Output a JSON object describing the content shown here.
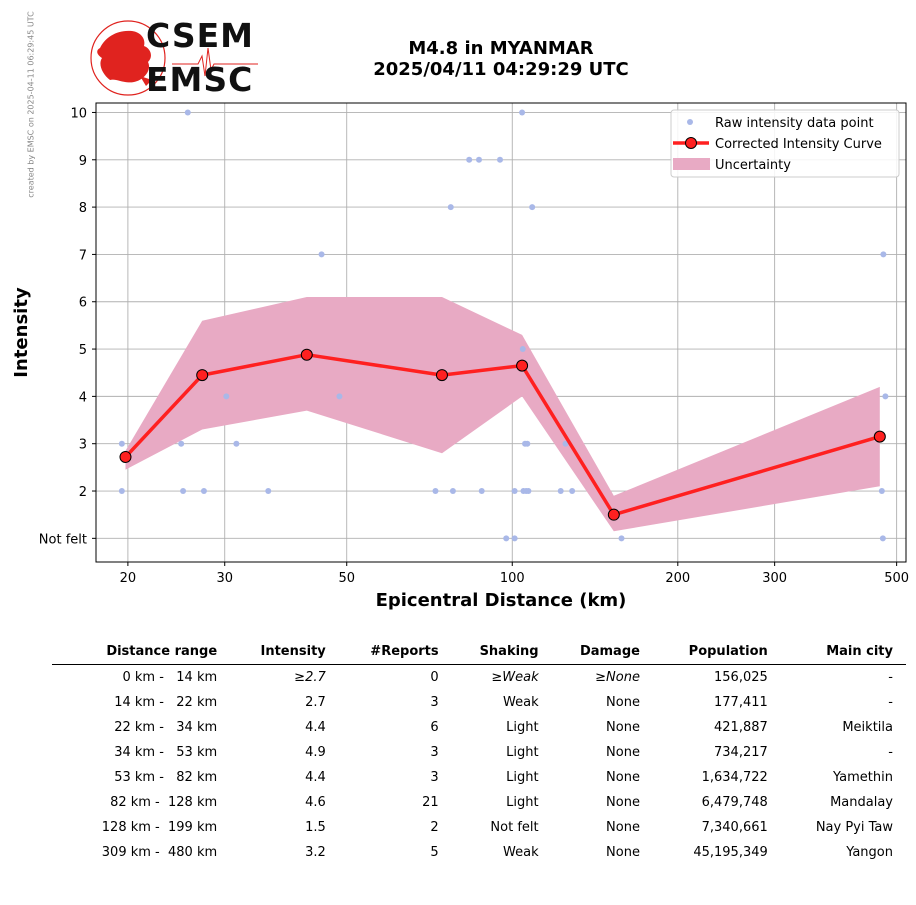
{
  "watermark": "created by EMSC on 2025-04-11 06:29:45 UTC",
  "logo": {
    "top": "CSEM",
    "bottom": "EMSC",
    "color": "#e0231f"
  },
  "title": {
    "line1": "M4.8 in MYANMAR",
    "line2": "2025/04/11 04:29:29 UTC"
  },
  "chart_data": {
    "type": "line",
    "xlabel": "Epicentral Distance (km)",
    "ylabel": "Intensity",
    "xscale": "log",
    "xlim": [
      17.5,
      520
    ],
    "ylim": [
      0.5,
      10.2
    ],
    "xticks": [
      20,
      30,
      50,
      100,
      200,
      300,
      500
    ],
    "yticks": [
      {
        "v": 1,
        "label": "Not felt"
      },
      {
        "v": 2,
        "label": "2"
      },
      {
        "v": 3,
        "label": "3"
      },
      {
        "v": 4,
        "label": "4"
      },
      {
        "v": 5,
        "label": "5"
      },
      {
        "v": 6,
        "label": "6"
      },
      {
        "v": 7,
        "label": "7"
      },
      {
        "v": 8,
        "label": "8"
      },
      {
        "v": 9,
        "label": "9"
      },
      {
        "v": 10,
        "label": "10"
      }
    ],
    "grid": true,
    "legend_position": "top-right",
    "legend": [
      "Raw intensity data point",
      "Corrected Intensity Curve",
      "Uncertainty"
    ],
    "colors": {
      "raw": "#a9b8e8",
      "curve": "#ff2020",
      "marker_edge": "#000000",
      "uncertainty": "#e8aac4",
      "grid": "#b0b0b0"
    },
    "curve": {
      "x": [
        19.8,
        27.3,
        42.3,
        74.5,
        104.2,
        153,
        466
      ],
      "y": [
        2.72,
        4.45,
        4.88,
        4.45,
        4.65,
        1.5,
        3.15
      ]
    },
    "uncertainty": {
      "x": [
        19.8,
        27.3,
        42.3,
        74.5,
        104.2,
        153,
        466
      ],
      "upper": [
        2.85,
        5.6,
        6.1,
        6.1,
        5.3,
        1.9,
        4.2
      ],
      "lower": [
        2.45,
        3.3,
        3.7,
        2.8,
        4.0,
        1.15,
        2.1
      ]
    },
    "raw_points": {
      "x": [
        25.7,
        104.2,
        83.5,
        87.0,
        95.0,
        77.3,
        108.7,
        45.0,
        473,
        104.5,
        30.2,
        48.5,
        477,
        19.5,
        25.0,
        31.5,
        105.5,
        106.5,
        125.0,
        19.5,
        25.2,
        27.5,
        36.0,
        72.5,
        78.0,
        88.0,
        101.0,
        104.8,
        106.0,
        107.0,
        122.5,
        128.5,
        470,
        97.5,
        101.0,
        158.0,
        472
      ],
      "y": [
        10,
        10,
        9,
        9,
        9,
        8,
        8,
        7,
        7,
        5,
        4,
        4,
        4,
        3,
        3,
        3,
        3,
        3,
        3,
        2,
        2,
        2,
        2,
        2,
        2,
        2,
        2,
        2,
        2,
        2,
        2,
        2,
        2,
        1,
        1,
        1,
        1
      ]
    }
  },
  "table": {
    "headers": [
      "Distance range",
      "Intensity",
      "#Reports",
      "Shaking",
      "Damage",
      "Population",
      "Main city"
    ],
    "rows": [
      [
        "0 km -   14 km",
        "≥2.7",
        "0",
        "≥Weak",
        "≥None",
        "156,025",
        "-"
      ],
      [
        "14 km -   22 km",
        "2.7",
        "3",
        "Weak",
        "None",
        "177,411",
        "-"
      ],
      [
        "22 km -   34 km",
        "4.4",
        "6",
        "Light",
        "None",
        "421,887",
        "Meiktila"
      ],
      [
        "34 km -   53 km",
        "4.9",
        "3",
        "Light",
        "None",
        "734,217",
        "-"
      ],
      [
        "53 km -   82 km",
        "4.4",
        "3",
        "Light",
        "None",
        "1,634,722",
        "Yamethin"
      ],
      [
        "82 km -  128 km",
        "4.6",
        "21",
        "Light",
        "None",
        "6,479,748",
        "Mandalay"
      ],
      [
        "128 km -  199 km",
        "1.5",
        "2",
        "Not felt",
        "None",
        "7,340,661",
        "Nay Pyi Taw"
      ],
      [
        "309 km -  480 km",
        "3.2",
        "5",
        "Weak",
        "None",
        "45,195,349",
        "Yangon"
      ]
    ]
  }
}
